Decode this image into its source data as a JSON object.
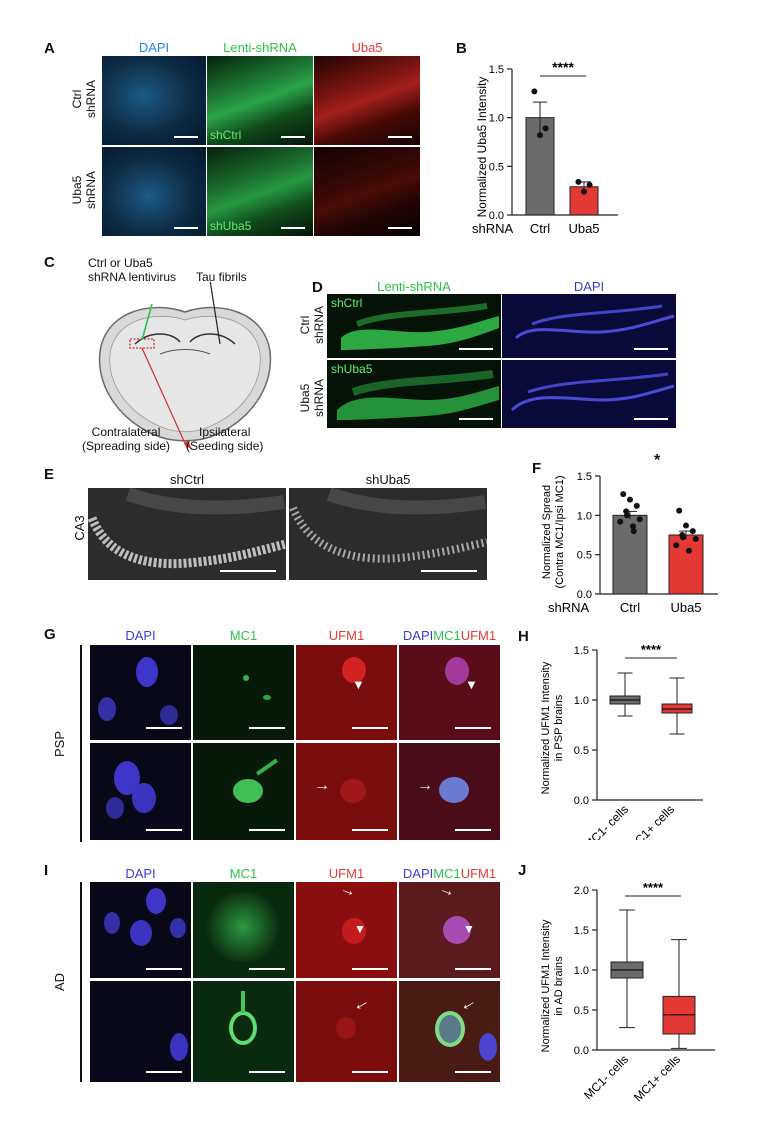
{
  "panels": {
    "A": {
      "label": "A",
      "columns": [
        "DAPI",
        "Lenti-shRNA",
        "Uba5"
      ],
      "column_colors": [
        "#1e88e5",
        "#2fbf4a",
        "#e53935"
      ],
      "rows": [
        "Ctrl\nshRNA",
        "Uba5\nshRNA"
      ],
      "inset_labels": [
        "shCtrl",
        "shUba5"
      ]
    },
    "B": {
      "label": "B",
      "x_prefix": "shRNA",
      "significance": "****",
      "chart_data": {
        "type": "bar",
        "categories": [
          "Ctrl",
          "Uba5"
        ],
        "values": [
          1.0,
          0.29
        ],
        "errors": [
          0.16,
          0.05
        ],
        "points": [
          [
            1.27,
            0.82,
            0.89
          ],
          [
            0.34,
            0.24,
            0.31
          ]
        ],
        "colors": [
          "#6b6b6b",
          "#e53935"
        ],
        "ylabel": "Normalized Uba5 Intensity",
        "ylim": [
          0,
          1.5
        ],
        "yticks": [
          "0.0",
          "0.5",
          "1.0",
          "1.5"
        ]
      }
    },
    "C": {
      "label": "C",
      "annotation_left": "Ctrl or Uba5\nshRNA lentivirus",
      "annotation_right": "Tau fibrils",
      "side_left": "Contralateral\n(Spreading side)",
      "side_right": "Ipsilateral\n(Seeding side)"
    },
    "D": {
      "label": "D",
      "columns": [
        "Lenti-shRNA",
        "DAPI"
      ],
      "column_colors": [
        "#2fbf4a",
        "#3d3dbf"
      ],
      "rows": [
        "Ctrl\nshRNA",
        "Uba5\nshRNA"
      ],
      "inset_labels": [
        "shCtrl",
        "shUba5"
      ]
    },
    "E": {
      "label": "E",
      "columns": [
        "shCtrl",
        "shUba5"
      ],
      "row": "CA3"
    },
    "F": {
      "label": "F",
      "x_prefix": "shRNA",
      "significance": "*",
      "chart_data": {
        "type": "bar",
        "categories": [
          "Ctrl",
          "Uba5"
        ],
        "values": [
          1.0,
          0.75
        ],
        "errors": [
          0.05,
          0.05
        ],
        "points": [
          [
            1.27,
            1.2,
            1.12,
            1.05,
            1.0,
            0.95,
            0.92,
            0.86,
            0.8
          ],
          [
            1.06,
            0.87,
            0.8,
            0.75,
            0.72,
            0.7,
            0.62,
            0.55
          ]
        ],
        "colors": [
          "#6b6b6b",
          "#e53935"
        ],
        "ylabel": "Normalized Spread\n(Contra MC1/Ipsi MC1)",
        "ylim": [
          0,
          1.5
        ],
        "yticks": [
          "0.0",
          "0.5",
          "1.0",
          "1.5"
        ]
      }
    },
    "G": {
      "label": "G",
      "columns": [
        "DAPI",
        "MC1",
        "UFM1"
      ],
      "merged_parts": [
        "DAPI",
        "MC1",
        "UFM1"
      ],
      "column_colors": [
        "#3b3bd6",
        "#2fbf4a",
        "#e53935"
      ],
      "row": "PSP"
    },
    "H": {
      "label": "H",
      "significance": "****",
      "chart_data": {
        "type": "box",
        "categories": [
          "MC1- cells",
          "MC1+ cells"
        ],
        "boxes": [
          {
            "min": 0.84,
            "q1": 0.96,
            "median": 1.0,
            "q3": 1.04,
            "max": 1.27
          },
          {
            "min": 0.66,
            "q1": 0.87,
            "median": 0.91,
            "q3": 0.96,
            "max": 1.22
          }
        ],
        "colors": [
          "#6b6b6b",
          "#e53935"
        ],
        "ylabel": "Normalized UFM1 Intensity\nin PSP brains",
        "ylim": [
          0,
          1.5
        ],
        "yticks": [
          "0.0",
          "0.5",
          "1.0",
          "1.5"
        ]
      }
    },
    "I": {
      "label": "I",
      "columns": [
        "DAPI",
        "MC1",
        "UFM1"
      ],
      "merged_parts": [
        "DAPI",
        "MC1",
        "UFM1"
      ],
      "column_colors": [
        "#3b3bd6",
        "#2fbf4a",
        "#e53935"
      ],
      "row": "AD"
    },
    "J": {
      "label": "J",
      "significance": "****",
      "chart_data": {
        "type": "box",
        "categories": [
          "MC1- cells",
          "MC1+ cells"
        ],
        "boxes": [
          {
            "min": 0.28,
            "q1": 0.9,
            "median": 1.0,
            "q3": 1.1,
            "max": 1.75
          },
          {
            "min": 0.02,
            "q1": 0.2,
            "median": 0.44,
            "q3": 0.67,
            "max": 1.38
          }
        ],
        "colors": [
          "#6b6b6b",
          "#e53935"
        ],
        "ylabel": "Normalized UFM1 Intensity\nin AD brains",
        "ylim": [
          0,
          2.0
        ],
        "yticks": [
          "0.0",
          "0.5",
          "1.0",
          "1.5",
          "2.0"
        ]
      }
    }
  }
}
